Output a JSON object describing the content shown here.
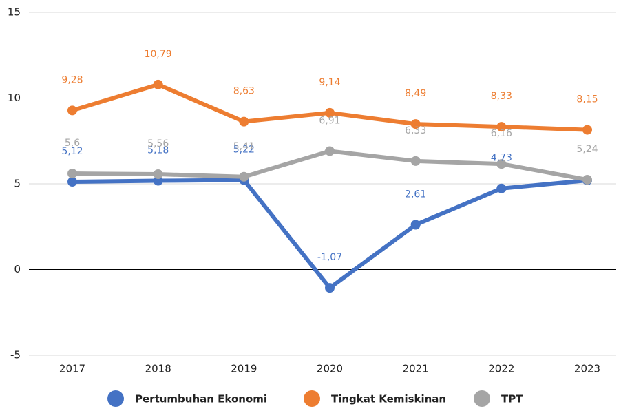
{
  "chart_data": {
    "type": "line",
    "categories": [
      "2017",
      "2018",
      "2019",
      "2020",
      "2021",
      "2022",
      "2023"
    ],
    "series": [
      {
        "name": "Pertumbuhan Ekonomi",
        "color": "#4472c4",
        "values": [
          5.12,
          5.18,
          5.22,
          -1.07,
          2.61,
          4.73,
          5.2
        ],
        "value_labels": [
          "5,12",
          "5,18",
          "5,22",
          "-1,07",
          "2,61",
          "4,73",
          null
        ]
      },
      {
        "name": "Tingkat Kemiskinan",
        "color": "#ed7d31",
        "values": [
          9.28,
          10.79,
          8.63,
          9.14,
          8.49,
          8.33,
          8.15
        ],
        "value_labels": [
          "9,28",
          "10,79",
          "8,63",
          "9,14",
          "8,49",
          "8,33",
          "8,15"
        ]
      },
      {
        "name": "TPT",
        "color": "#a5a5a5",
        "values": [
          5.6,
          5.56,
          5.41,
          6.91,
          6.33,
          6.16,
          5.24
        ],
        "value_labels": [
          "5,6",
          "5,56",
          "5,41",
          "6,91",
          "6,33",
          "6,16",
          "5,24"
        ]
      }
    ],
    "ylim": [
      -5,
      15
    ],
    "yticks": [
      -5,
      0,
      5,
      10,
      15
    ],
    "grid": true,
    "legend": "bottom"
  }
}
